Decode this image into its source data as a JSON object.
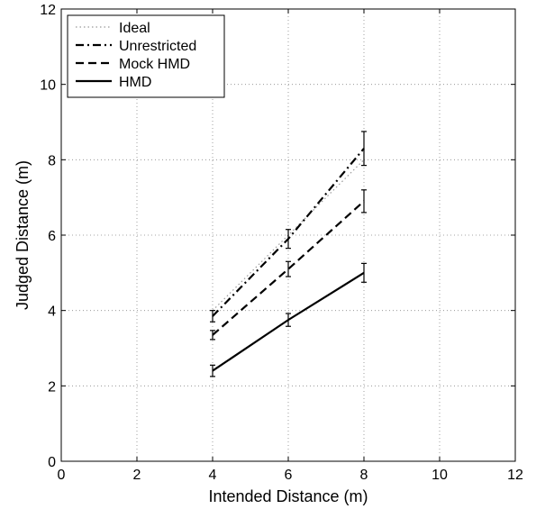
{
  "chart_data": {
    "type": "line",
    "xlabel": "Intended Distance (m)",
    "ylabel": "Judged Distance (m)",
    "xlim": [
      0,
      12
    ],
    "ylim": [
      0,
      12
    ],
    "xticks": [
      0,
      2,
      4,
      6,
      8,
      10,
      12
    ],
    "yticks": [
      0,
      2,
      4,
      6,
      8,
      10,
      12
    ],
    "grid": true,
    "legend_position": "top-left",
    "series": [
      {
        "name": "Ideal",
        "style": "dotted",
        "color": "#999999",
        "x": [
          4,
          6,
          8
        ],
        "y": [
          4,
          6,
          8
        ]
      },
      {
        "name": "Unrestricted",
        "style": "dashdot",
        "color": "#000000",
        "x": [
          4,
          6,
          8
        ],
        "y": [
          3.85,
          5.9,
          8.3
        ],
        "error": [
          0.15,
          0.25,
          0.45
        ]
      },
      {
        "name": "Mock HMD",
        "style": "dashed",
        "color": "#000000",
        "x": [
          4,
          6,
          8
        ],
        "y": [
          3.35,
          5.1,
          6.9
        ],
        "error": [
          0.12,
          0.2,
          0.3
        ]
      },
      {
        "name": "HMD",
        "style": "solid",
        "color": "#000000",
        "x": [
          4,
          6,
          8
        ],
        "y": [
          2.4,
          3.75,
          5.0
        ],
        "error": [
          0.15,
          0.17,
          0.25
        ]
      }
    ]
  }
}
